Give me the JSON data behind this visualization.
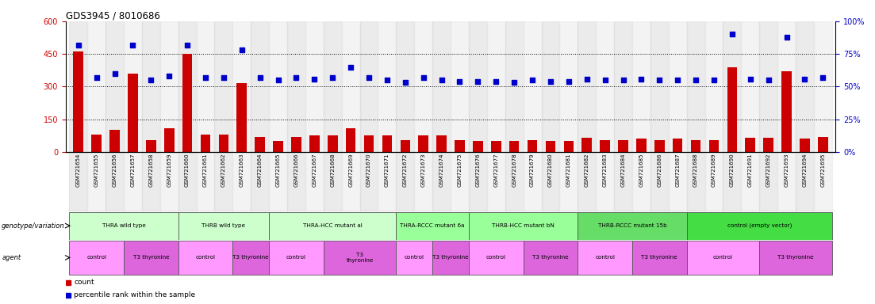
{
  "title": "GDS3945 / 8010686",
  "samples": [
    "GSM721654",
    "GSM721655",
    "GSM721656",
    "GSM721657",
    "GSM721658",
    "GSM721659",
    "GSM721660",
    "GSM721661",
    "GSM721662",
    "GSM721663",
    "GSM721664",
    "GSM721665",
    "GSM721666",
    "GSM721667",
    "GSM721668",
    "GSM721669",
    "GSM721670",
    "GSM721671",
    "GSM721672",
    "GSM721673",
    "GSM721674",
    "GSM721675",
    "GSM721676",
    "GSM721677",
    "GSM721678",
    "GSM721679",
    "GSM721680",
    "GSM721681",
    "GSM721682",
    "GSM721683",
    "GSM721684",
    "GSM721685",
    "GSM721686",
    "GSM721687",
    "GSM721688",
    "GSM721689",
    "GSM721690",
    "GSM721691",
    "GSM721692",
    "GSM721693",
    "GSM721694",
    "GSM721695"
  ],
  "counts": [
    460,
    80,
    100,
    360,
    55,
    110,
    450,
    80,
    80,
    315,
    70,
    50,
    70,
    75,
    75,
    110,
    75,
    75,
    55,
    75,
    75,
    55,
    50,
    50,
    50,
    55,
    50,
    50,
    65,
    55,
    55,
    60,
    55,
    60,
    55,
    55,
    390,
    65,
    65,
    370,
    60,
    70
  ],
  "percentiles": [
    82,
    57,
    60,
    82,
    55,
    58,
    82,
    57,
    57,
    78,
    57,
    55,
    57,
    56,
    57,
    65,
    57,
    55,
    53,
    57,
    55,
    54,
    54,
    54,
    53,
    55,
    54,
    54,
    56,
    55,
    55,
    56,
    55,
    55,
    55,
    55,
    90,
    56,
    55,
    88,
    56,
    57
  ],
  "ylim_left": [
    0,
    600
  ],
  "ylim_right": [
    0,
    100
  ],
  "yticks_left": [
    0,
    150,
    300,
    450,
    600
  ],
  "yticks_right": [
    0,
    25,
    50,
    75,
    100
  ],
  "bar_color": "#cc0000",
  "dot_color": "#0000cc",
  "bg_colors": [
    "#d8d8d8",
    "#e8e8e8"
  ],
  "genotype_groups": [
    {
      "label": "THRA wild type",
      "start": 0,
      "end": 6,
      "color": "#ccffcc"
    },
    {
      "label": "THRB wild type",
      "start": 6,
      "end": 11,
      "color": "#ccffcc"
    },
    {
      "label": "THRA-HCC mutant al",
      "start": 11,
      "end": 18,
      "color": "#ccffcc"
    },
    {
      "label": "THRA-RCCC mutant 6a",
      "start": 18,
      "end": 22,
      "color": "#99ff99"
    },
    {
      "label": "THRB-HCC mutant bN",
      "start": 22,
      "end": 28,
      "color": "#99ff99"
    },
    {
      "label": "THRB-RCCC mutant 15b",
      "start": 28,
      "end": 34,
      "color": "#66dd66"
    },
    {
      "label": "control (empty vector)",
      "start": 34,
      "end": 42,
      "color": "#44dd44"
    }
  ],
  "agent_groups": [
    {
      "label": "control",
      "start": 0,
      "end": 3,
      "color": "#ff99ff"
    },
    {
      "label": "T3 thyronine",
      "start": 3,
      "end": 6,
      "color": "#dd66dd"
    },
    {
      "label": "control",
      "start": 6,
      "end": 9,
      "color": "#ff99ff"
    },
    {
      "label": "T3 thyronine",
      "start": 9,
      "end": 11,
      "color": "#dd66dd"
    },
    {
      "label": "control",
      "start": 11,
      "end": 14,
      "color": "#ff99ff"
    },
    {
      "label": "T3\nthyronine",
      "start": 14,
      "end": 18,
      "color": "#dd66dd"
    },
    {
      "label": "control",
      "start": 18,
      "end": 20,
      "color": "#ff99ff"
    },
    {
      "label": "T3 thyronine",
      "start": 20,
      "end": 22,
      "color": "#dd66dd"
    },
    {
      "label": "control",
      "start": 22,
      "end": 25,
      "color": "#ff99ff"
    },
    {
      "label": "T3 thyronine",
      "start": 25,
      "end": 28,
      "color": "#dd66dd"
    },
    {
      "label": "control",
      "start": 28,
      "end": 31,
      "color": "#ff99ff"
    },
    {
      "label": "T3 thyronine",
      "start": 31,
      "end": 34,
      "color": "#dd66dd"
    },
    {
      "label": "control",
      "start": 34,
      "end": 38,
      "color": "#ff99ff"
    },
    {
      "label": "T3 thyronine",
      "start": 38,
      "end": 42,
      "color": "#dd66dd"
    }
  ],
  "left_label_color": "#cc0000",
  "right_label_color": "#0000cc"
}
